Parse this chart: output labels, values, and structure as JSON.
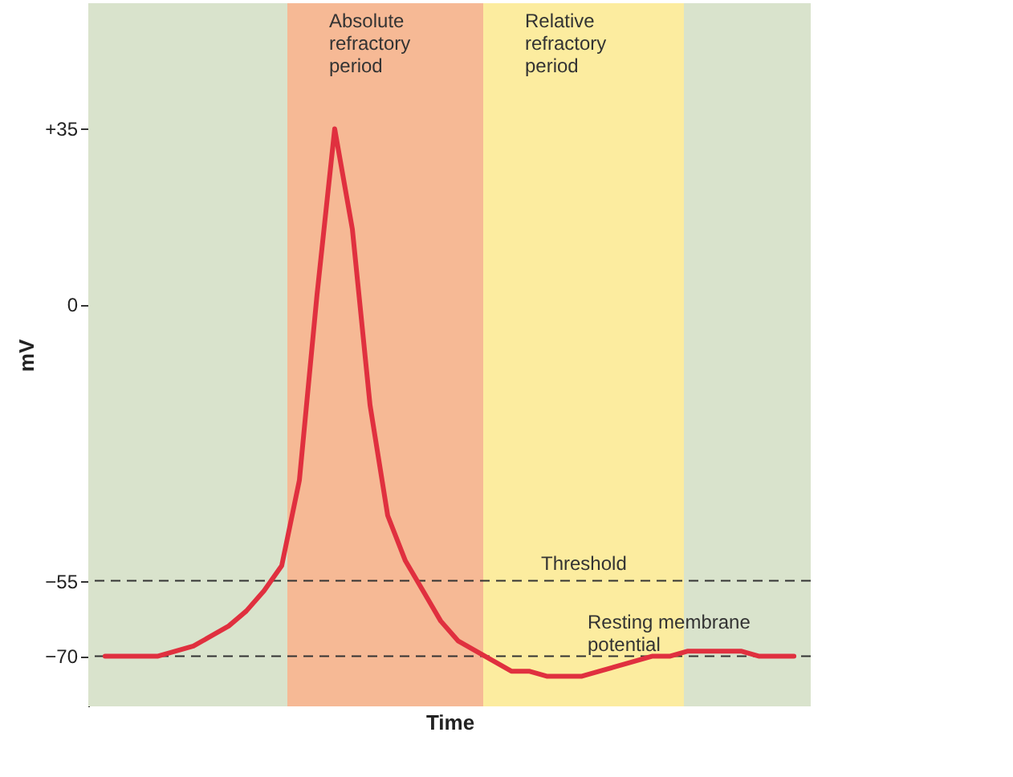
{
  "chart_data": {
    "type": "line",
    "xlabel": "Time",
    "ylabel": "mV",
    "categories": [
      null,
      null,
      null,
      null,
      null,
      null,
      null,
      null,
      null,
      null,
      null,
      null,
      null,
      null,
      null,
      null,
      null,
      null,
      null,
      null,
      null,
      null,
      null,
      null,
      null,
      null,
      null,
      null,
      null,
      null,
      null,
      null,
      null,
      null,
      null,
      null,
      null,
      null,
      null,
      null
    ],
    "series": [
      {
        "color": "#e0303f",
        "values": [
          -70,
          -70,
          -70,
          -70,
          -69,
          -68,
          -66,
          -64,
          -61,
          -57,
          -52,
          -35,
          2,
          35,
          15,
          -20,
          -42,
          -51,
          -57,
          -63,
          -67,
          -69,
          -71,
          -73,
          -73,
          -74,
          -74,
          -74,
          -73,
          -72,
          -71,
          -70,
          -70,
          -69,
          -69,
          -69,
          -69,
          -70,
          -70,
          -70
        ]
      }
    ],
    "ylim": [
      -80,
      60
    ],
    "yticks": [
      {
        "value": 35,
        "label": "+35"
      },
      {
        "value": 0,
        "label": "0"
      },
      {
        "value": -55,
        "label": "−55"
      },
      {
        "value": -70,
        "label": "−70"
      }
    ],
    "tick_labels": "y",
    "grid": false,
    "marker": "none",
    "line_style": "solid",
    "annotations": [
      "Absolute refractory period",
      "Relative refractory period"
    ],
    "ref_lines": [
      {
        "axis": "y",
        "value": -55,
        "label": "Threshold",
        "line_style": "dashed",
        "color": "#333333"
      },
      {
        "axis": "y",
        "value": -70,
        "label": "Resting membrane potential",
        "line_style": "dashed",
        "color": "#333333"
      }
    ]
  }
}
